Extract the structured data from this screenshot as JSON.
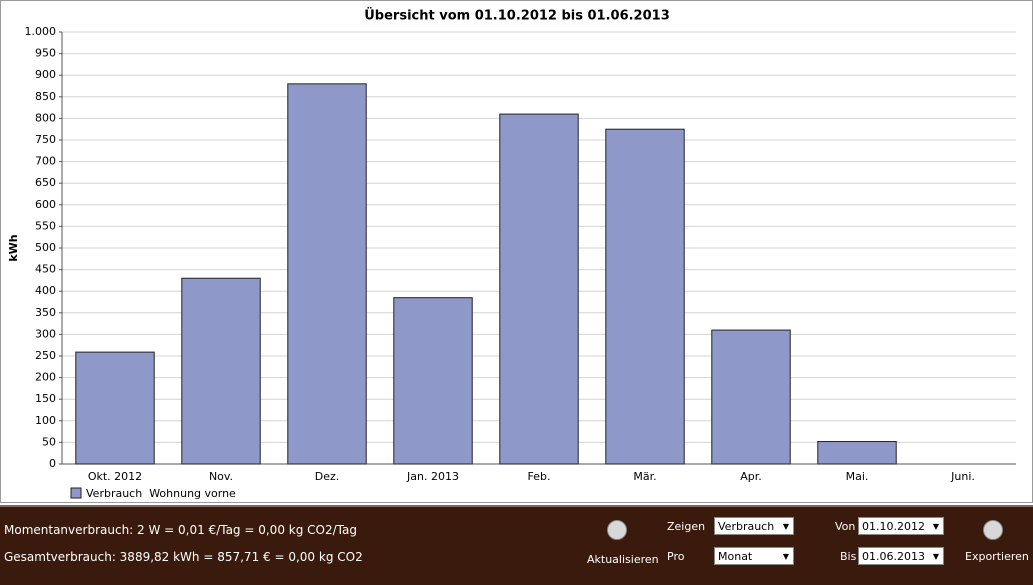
{
  "chart_data": {
    "type": "bar",
    "title": "Übersicht vom 01.10.2012 bis 01.06.2013",
    "y_label": "kWh",
    "categories": [
      "Okt. 2012",
      "Nov.",
      "Dez.",
      "Jan. 2013",
      "Feb.",
      "Mär.",
      "Apr.",
      "Mai.",
      "Juni."
    ],
    "series": [
      {
        "name": "Verbrauch  Wohnung vorne",
        "color": "#8f99c9",
        "values": [
          259,
          430,
          880,
          385,
          810,
          775,
          310,
          52,
          0
        ]
      }
    ],
    "ylim": [
      0,
      1000
    ],
    "yticks": [
      0,
      50,
      100,
      150,
      200,
      250,
      300,
      350,
      400,
      450,
      500,
      550,
      600,
      650,
      700,
      750,
      800,
      850,
      900,
      950,
      {
        "value": 1000,
        "label": "1.000"
      }
    ],
    "grid": true
  },
  "status": {
    "current": "Momentanverbrauch: 2 W = 0,01 €/Tag = 0,00 kg CO2/Tag",
    "total": "Gesamtverbrauch: 3889,82 kWh = 857,71 € = 0,00 kg CO2"
  },
  "controls": {
    "refresh": "Aktualisieren",
    "show_label": "Zeigen",
    "show_value": "Verbrauch",
    "per_label": "Pro",
    "per_value": "Monat",
    "from_label": "Von",
    "from_value": "01.10.2012",
    "to_label": "Bis",
    "to_value": "01.06.2013",
    "export": "Exportieren"
  }
}
